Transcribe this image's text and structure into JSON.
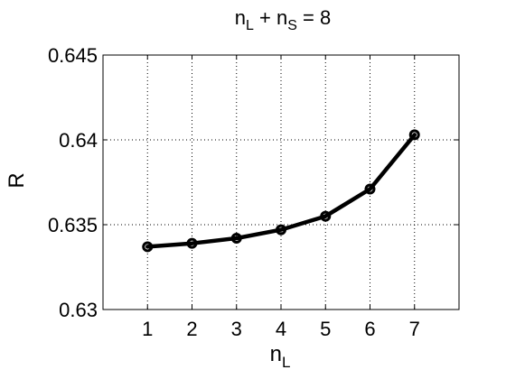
{
  "chart_data": {
    "type": "line",
    "title": {
      "base1": "n",
      "sub1": "L",
      "mid": " + n",
      "sub2": "S",
      "tail": " = 8"
    },
    "xlabel": {
      "base": "n",
      "sub": "L"
    },
    "ylabel": "R",
    "x": [
      1,
      2,
      3,
      4,
      5,
      6,
      7
    ],
    "xlim": [
      0,
      8
    ],
    "xticks": [
      1,
      2,
      3,
      4,
      5,
      6,
      7
    ],
    "xtick_labels": [
      "1",
      "2",
      "3",
      "4",
      "5",
      "6",
      "7"
    ],
    "ylim": [
      0.63,
      0.645
    ],
    "yticks": [
      0.63,
      0.635,
      0.64,
      0.645
    ],
    "ytick_labels": [
      "0.63",
      "0.635",
      "0.64",
      "0.645"
    ],
    "grid": true,
    "series": [
      {
        "values": [
          0.6337,
          0.6339,
          0.6342,
          0.6347,
          0.6355,
          0.6371,
          0.6403
        ],
        "color": "#000000",
        "marker": "circle"
      }
    ]
  }
}
